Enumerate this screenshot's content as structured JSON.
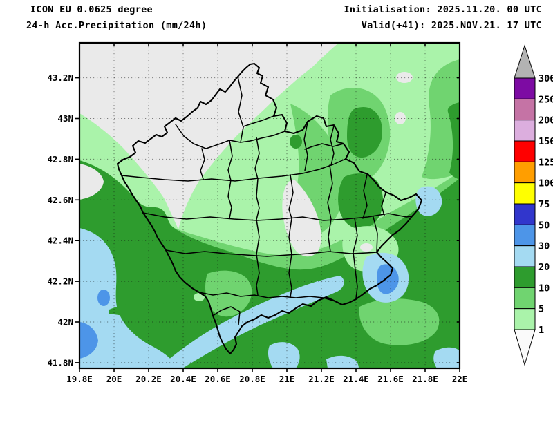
{
  "header": {
    "line1": "ICON EU 0.0625 degree",
    "line2": "24-h Acc.Precipitation (mm/24h)",
    "init_label": "Initialisation: 2025.11.20. 00 UTC",
    "valid_label": "Valid(+41): 2025.NOV.21. 17 UTC"
  },
  "axes": {
    "x_ticks": [
      "19.8E",
      "20E",
      "20.2E",
      "20.4E",
      "20.6E",
      "20.8E",
      "21E",
      "21.2E",
      "21.4E",
      "21.6E",
      "21.8E",
      "22E"
    ],
    "y_ticks": [
      "43.2N",
      "43N",
      "42.8N",
      "42.6N",
      "42.4N",
      "42.2N",
      "42N",
      "41.8N"
    ]
  },
  "colorbar": {
    "tick_labels": [
      "300",
      "250",
      "200",
      "150",
      "125",
      "100",
      "75",
      "50",
      "30",
      "20",
      "10",
      "5",
      "1"
    ],
    "bands": [
      {
        "value_range": "250-300",
        "color": "#7d0ba3"
      },
      {
        "value_range": "200-250",
        "color": "#c573a5"
      },
      {
        "value_range": "150-200",
        "color": "#dcaede"
      },
      {
        "value_range": "125-150",
        "color": "#ff0000"
      },
      {
        "value_range": "100-125",
        "color": "#ff9e00"
      },
      {
        "value_range": "75-100",
        "color": "#ffff00"
      },
      {
        "value_range": "50-75",
        "color": "#3136cc"
      },
      {
        "value_range": "30-50",
        "color": "#4d95e8"
      },
      {
        "value_range": "20-30",
        "color": "#a4daf2"
      },
      {
        "value_range": "10-20",
        "color": "#2e9c2e"
      },
      {
        "value_range": "5-10",
        "color": "#70d470"
      },
      {
        "value_range": "1-5",
        "color": "#aaf3aa"
      }
    ],
    "over_color": "#b3b3b3",
    "under_color": "#fafafa"
  },
  "map": {
    "region": "Kosovo municipalities",
    "lon_left": "19.8E",
    "lon_right": "22E",
    "lat_bottom": "41.8N",
    "lat_top": "43.2N",
    "colors": {
      "below_1": "#eaeaea",
      "range_1_5": "#aaf3aa",
      "range_5_10": "#70d470",
      "range_10_20": "#2e9c2e",
      "range_20_30": "#a4daf2",
      "range_30_50": "#4d95e8",
      "border": "#000000"
    }
  }
}
